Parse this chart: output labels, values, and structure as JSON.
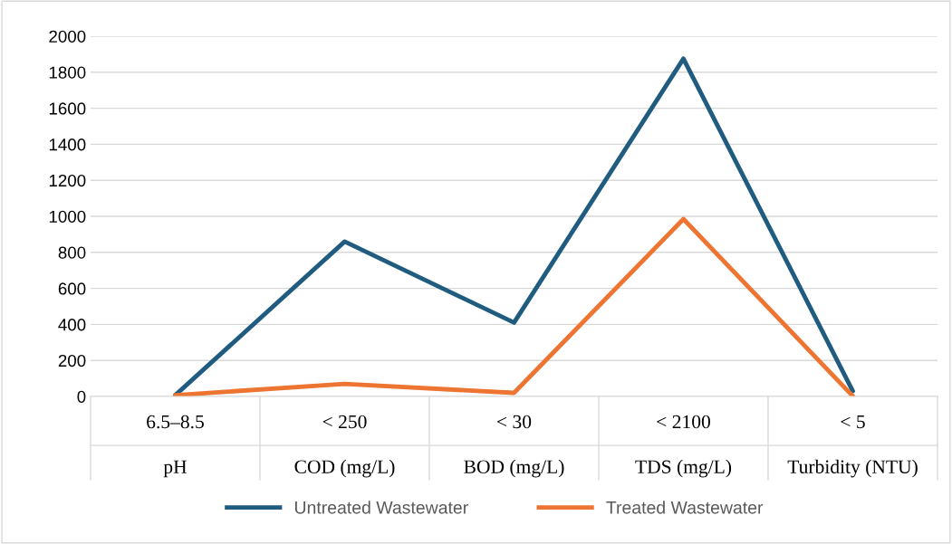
{
  "chart_data": {
    "type": "line",
    "categories": [
      "6.5–8.5\npH",
      "< 250\nCOD (mg/L)",
      "< 30\nBOD (mg/L)",
      "< 2100\nTDS (mg/L)",
      "< 5\nTurbidity (NTU)"
    ],
    "series": [
      {
        "name": "Untreated Wastewater",
        "color": "#1f5c7f",
        "values": [
          7,
          860,
          410,
          1875,
          30
        ]
      },
      {
        "name": "Treated Wastewater",
        "color": "#ed7431",
        "values": [
          7,
          70,
          20,
          985,
          2
        ]
      }
    ],
    "ylim": [
      0,
      2000
    ],
    "yticks": [
      0,
      200,
      400,
      600,
      800,
      1000,
      1200,
      1400,
      1600,
      1800,
      2000
    ],
    "grid": "y",
    "legend": "bottom",
    "marker": "none",
    "line_style": "solid"
  }
}
